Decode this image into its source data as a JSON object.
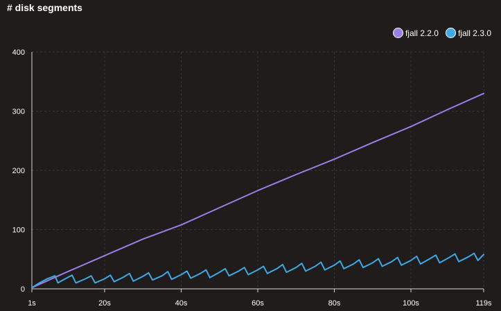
{
  "chart_data": {
    "type": "line",
    "title": "# disk segments",
    "xlabel": "",
    "ylabel": "",
    "x_ticks": [
      "1s",
      "20s",
      "40s",
      "60s",
      "80s",
      "100s",
      "119s"
    ],
    "x_tick_values": [
      1,
      20,
      40,
      60,
      80,
      100,
      119
    ],
    "y_ticks": [
      "0",
      "100",
      "200",
      "300",
      "400"
    ],
    "y_tick_values": [
      0,
      100,
      200,
      300,
      400
    ],
    "xlim": [
      1,
      119
    ],
    "ylim": [
      0,
      400
    ],
    "grid": true,
    "legend_position": "top-right",
    "series": [
      {
        "name": "fjall 2.2.0",
        "color": "#9b7fe6",
        "x": [
          1,
          10,
          20,
          30,
          40,
          50,
          60,
          70,
          80,
          90,
          100,
          110,
          119
        ],
        "y": [
          2,
          28,
          56,
          84,
          108,
          137,
          166,
          193,
          219,
          247,
          274,
          304,
          330
        ]
      },
      {
        "name": "fjall 2.3.0",
        "color": "#3fa9e6",
        "x": [
          1,
          3,
          5,
          7,
          7.8,
          10,
          11.5,
          12.5,
          15,
          16.5,
          17.5,
          20,
          21.5,
          22.5,
          25,
          26.5,
          27.5,
          30,
          31.5,
          32.5,
          35,
          36.5,
          37.5,
          40,
          41.5,
          42.5,
          45,
          46.5,
          47.5,
          50,
          51.5,
          52.5,
          55,
          56.5,
          57.5,
          60,
          61.5,
          62.5,
          65,
          66.5,
          67.5,
          70,
          71.5,
          72.5,
          75,
          76.5,
          77.5,
          80,
          81.5,
          82.5,
          85,
          86.5,
          87.5,
          90,
          91.5,
          92.5,
          95,
          96.5,
          97.5,
          100,
          101.5,
          102.5,
          105,
          106.5,
          107.5,
          110,
          111.5,
          112.5,
          115,
          116.5,
          117.5,
          119
        ],
        "y": [
          2,
          10,
          17,
          22,
          10,
          18,
          23,
          10,
          17,
          22,
          10,
          17,
          23,
          12,
          20,
          26,
          13,
          21,
          27,
          15,
          22,
          29,
          16,
          24,
          30,
          18,
          26,
          32,
          19,
          28,
          34,
          22,
          30,
          36,
          24,
          32,
          38,
          26,
          34,
          41,
          28,
          36,
          43,
          30,
          38,
          45,
          32,
          40,
          47,
          34,
          42,
          49,
          36,
          44,
          51,
          38,
          46,
          53,
          40,
          48,
          55,
          42,
          51,
          57,
          44,
          53,
          59,
          46,
          54,
          60,
          48,
          58
        ]
      }
    ]
  }
}
